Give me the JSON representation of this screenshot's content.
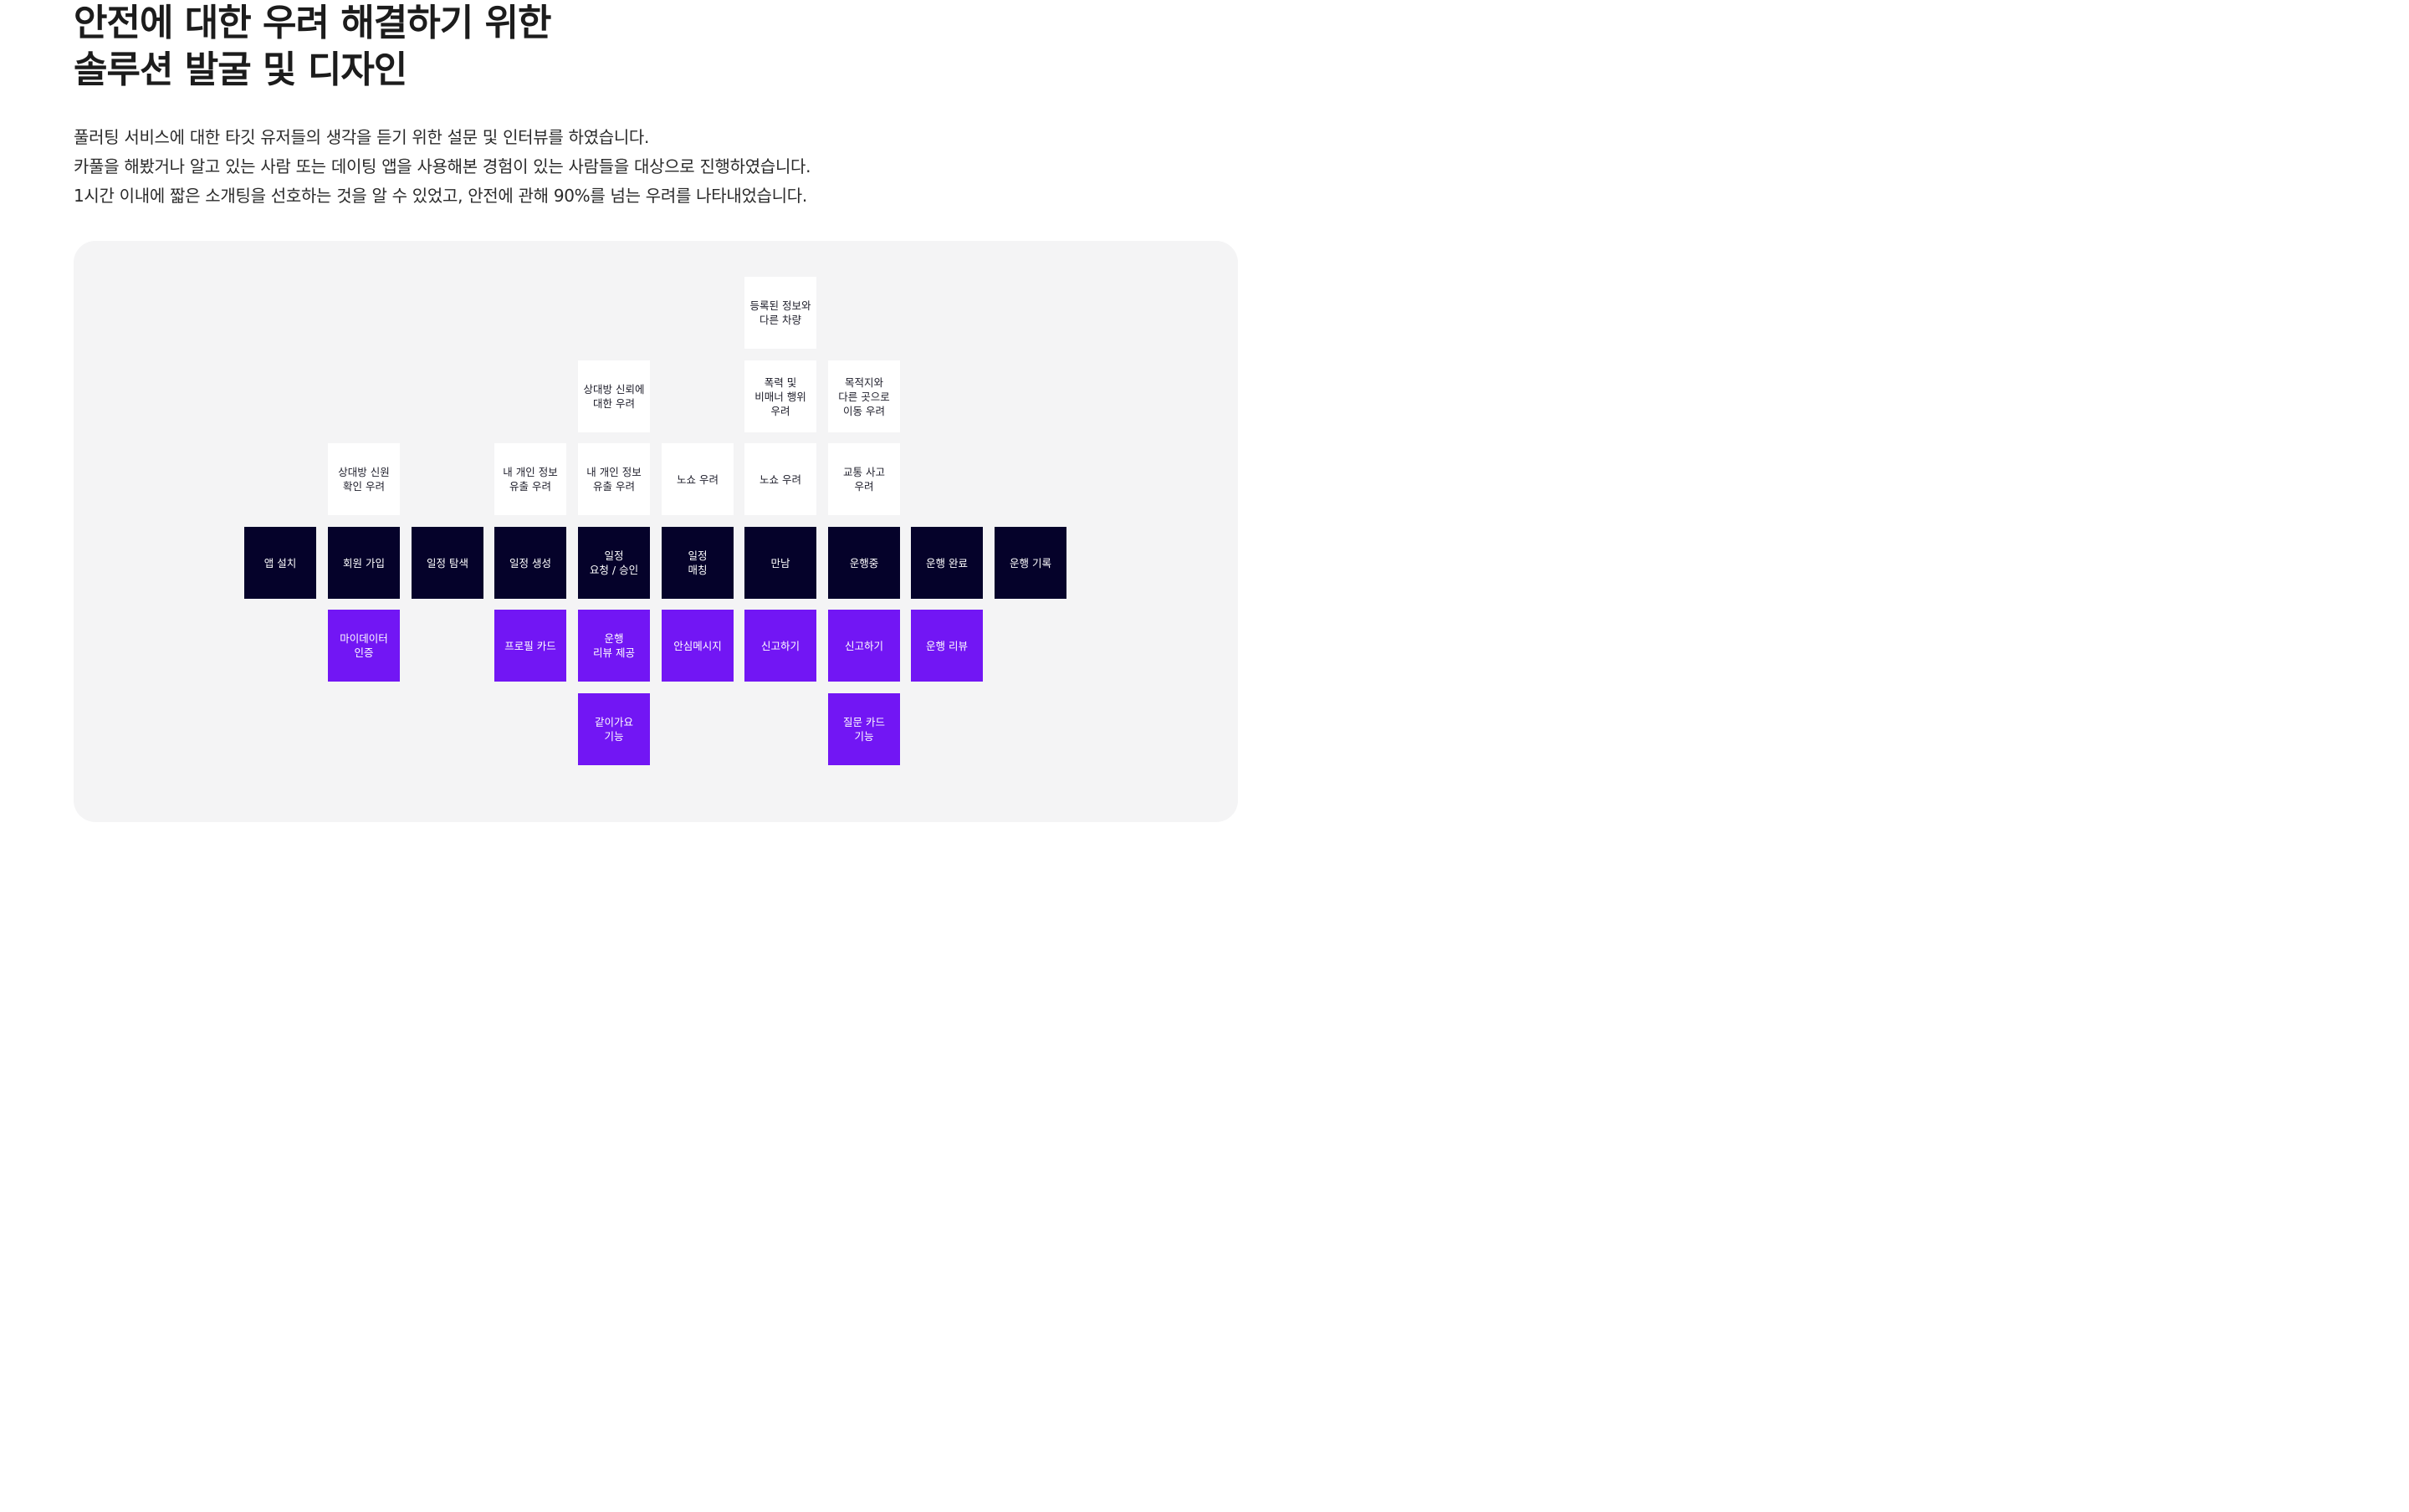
{
  "header": {
    "title_line1": "안전에 대한 우려 해결하기 위한",
    "title_line2": "솔루션 발굴 및 디자인"
  },
  "description": {
    "line1": "풀러팅 서비스에 대한 타깃 유저들의 생각을 듣기 위한 설문 및 인터뷰를 하였습니다.",
    "line2": "카풀을 해봤거나 알고 있는 사람 또는 데이팅 앱을 사용해본 경험이 있는 사람들을 대상으로 진행하였습니다.",
    "line3": "1시간 이내에 짧은 소개팅을 선호하는 것을 알 수 있었고, 안전에 관해 90%를 넘는 우려를 나타내었습니다."
  },
  "colors": {
    "step": "#05022a",
    "solution": "#7216f4",
    "concern": "#ffffff",
    "panel": "#f4f4f5"
  },
  "diagram": {
    "steps": [
      "앱 설치",
      "회원 가입",
      "일정 탐색",
      "일정 생성",
      "일정\n요청 / 승인",
      "일정\n매칭",
      "만남",
      "운행중",
      "운행 완료",
      "운행 기록"
    ],
    "concerns": {
      "c1_r1": "상대방 신원\n확인 우려",
      "c3_r1": "내 개인 정보\n유출 우려",
      "c4_r1": "내 개인 정보\n유출 우려",
      "c4_r2": "상대방 신뢰에\n대한 우려",
      "c5_r1": "노쇼 우려",
      "c6_r1": "노쇼 우려",
      "c6_r2": "폭력 및\n비매너 행위\n우려",
      "c6_r3": "등록된 정보와\n다른 차량",
      "c7_r1": "교통 사고\n우려",
      "c7_r2": "목적지와\n다른 곳으로\n이동 우려"
    },
    "solutions": {
      "c1_r1": "마이데이터\n인증",
      "c3_r1": "프로필 카드",
      "c4_r1": "운행\n리뷰 제공",
      "c4_r2": "같이가요\n기능",
      "c5_r1": "안심메시지",
      "c6_r1": "신고하기",
      "c7_r1": "신고하기",
      "c7_r2": "질문 카드\n기능",
      "c8_r1": "운행 리뷰"
    }
  }
}
